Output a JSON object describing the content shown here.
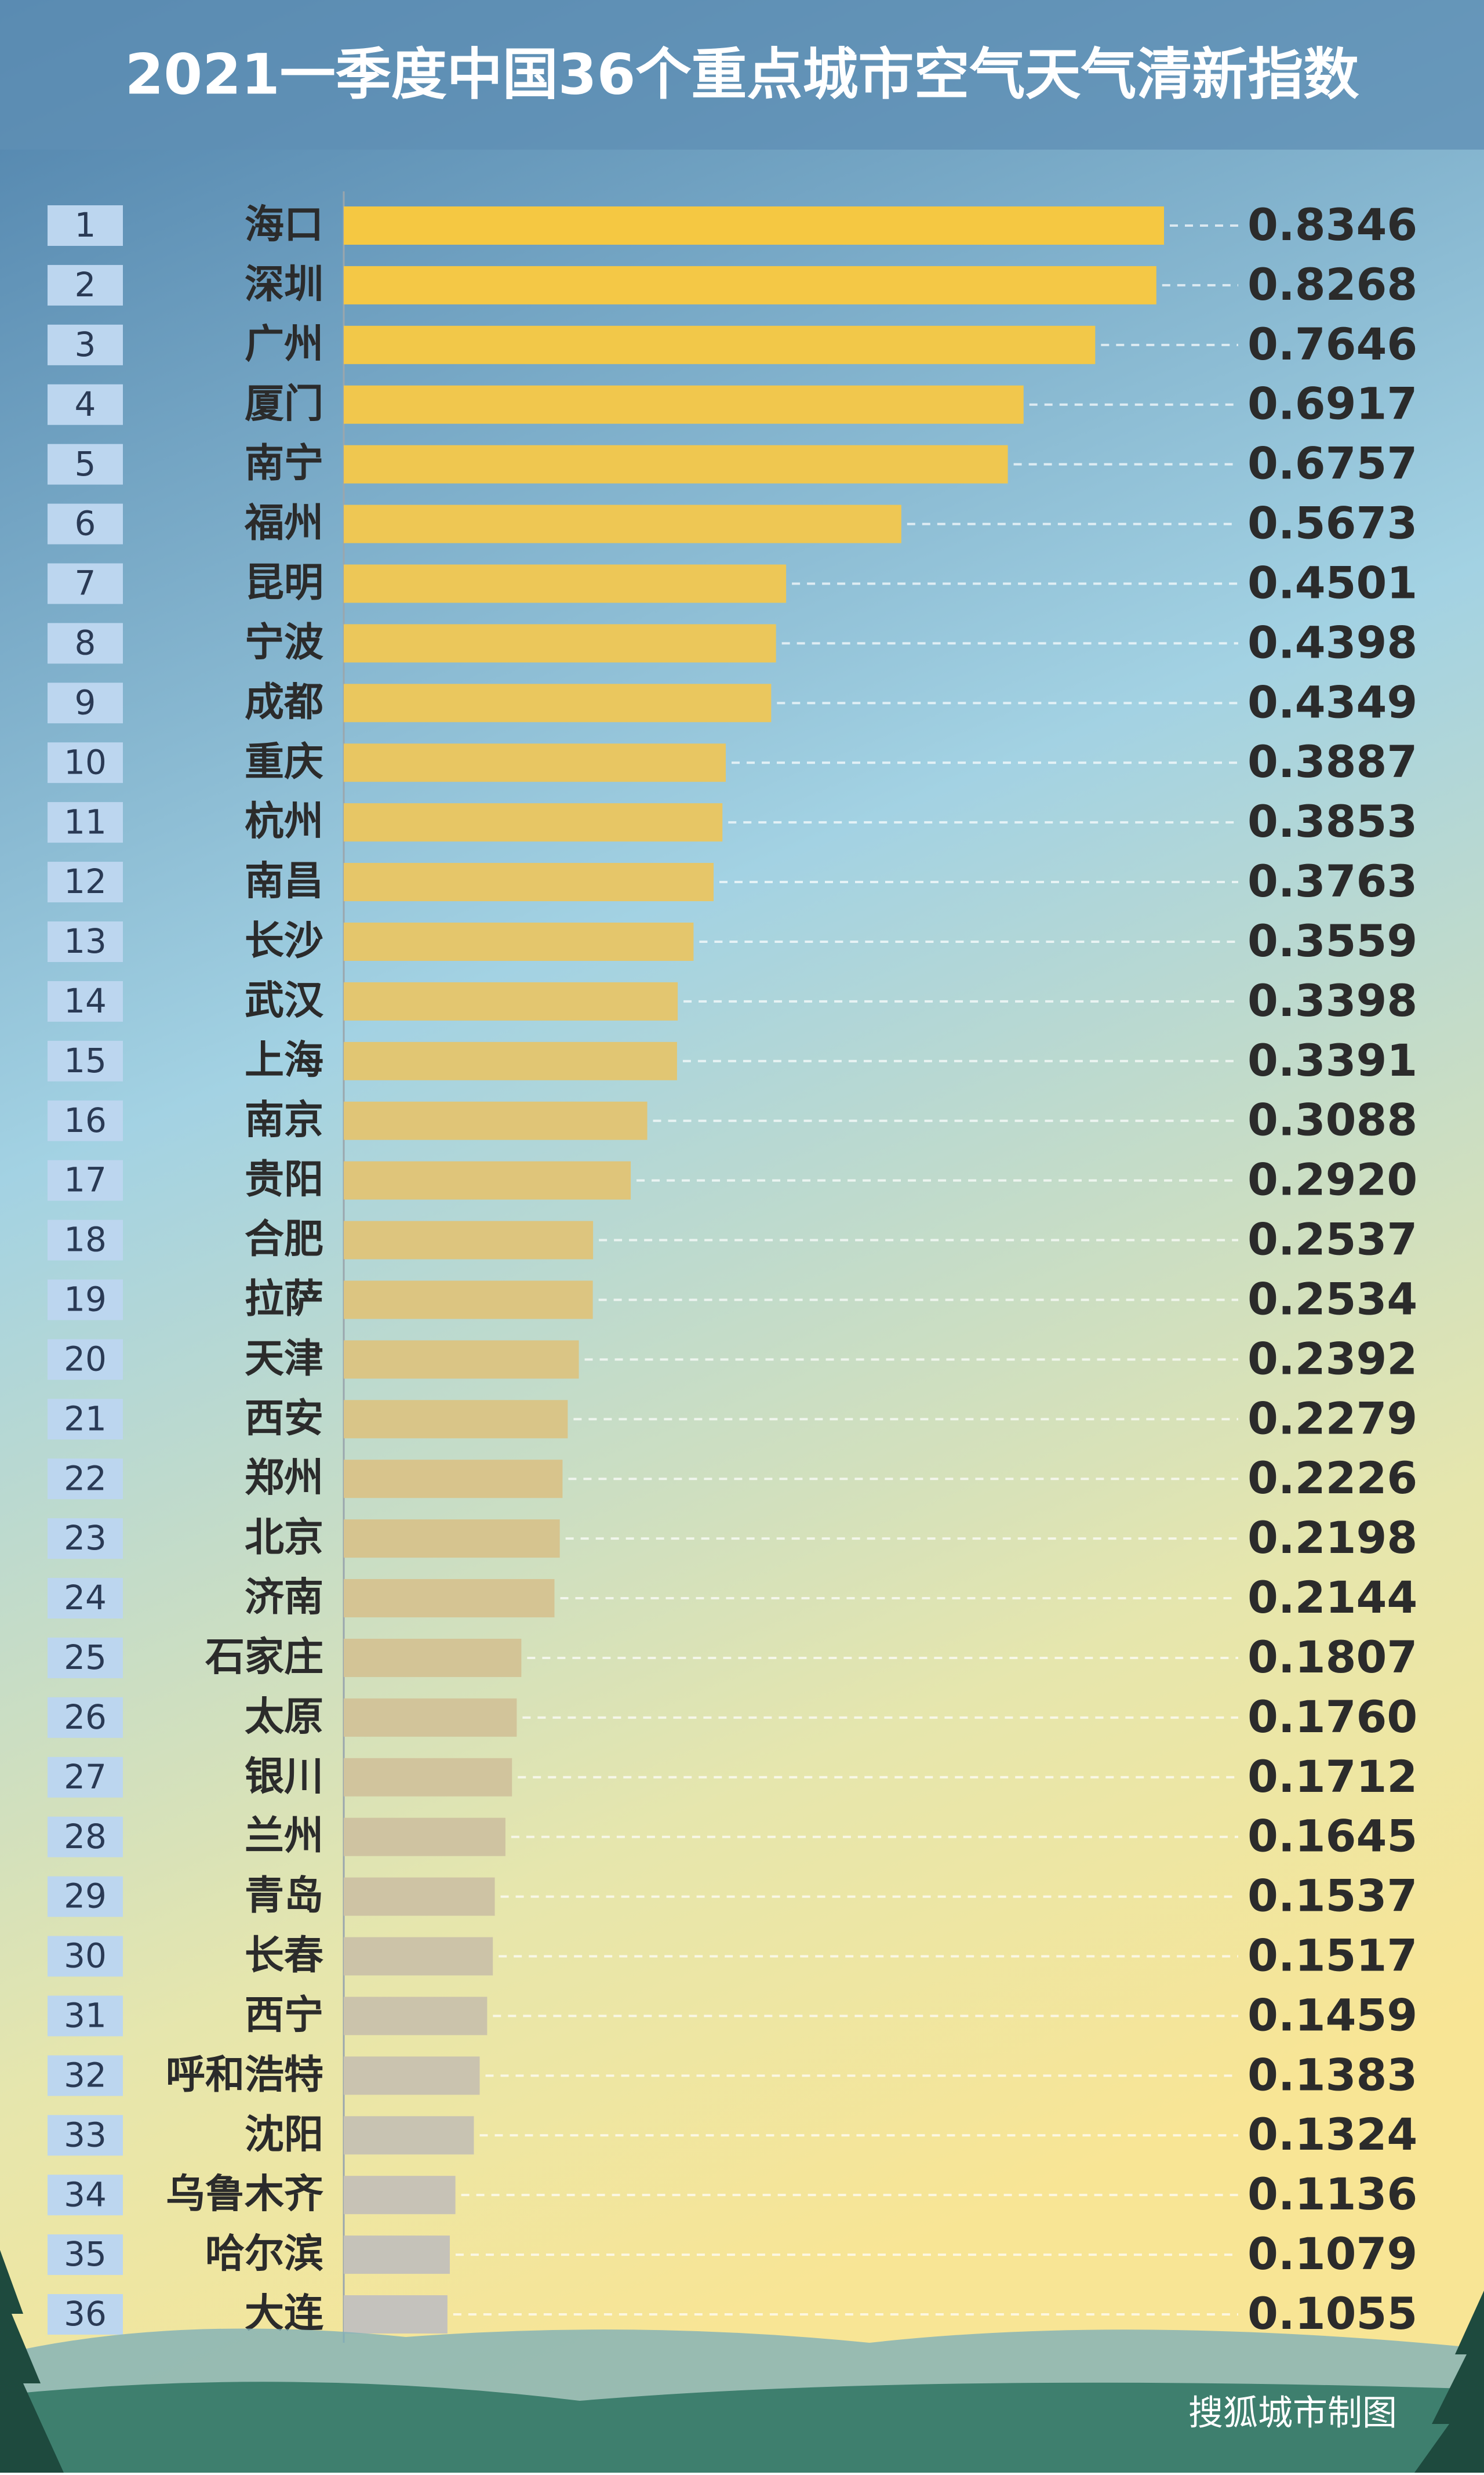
{
  "chart_data": {
    "type": "bar",
    "orientation": "horizontal",
    "title": "2021一季度中国36个重点城市空气天气清新指数",
    "ranks": [
      1,
      2,
      3,
      4,
      5,
      6,
      7,
      8,
      9,
      10,
      11,
      12,
      13,
      14,
      15,
      16,
      17,
      18,
      19,
      20,
      21,
      22,
      23,
      24,
      25,
      26,
      27,
      28,
      29,
      30,
      31,
      32,
      33,
      34,
      35,
      36
    ],
    "categories": [
      "海口",
      "深圳",
      "广州",
      "厦门",
      "南宁",
      "福州",
      "昆明",
      "宁波",
      "成都",
      "重庆",
      "杭州",
      "南昌",
      "长沙",
      "武汉",
      "上海",
      "南京",
      "贵阳",
      "合肥",
      "拉萨",
      "天津",
      "西安",
      "郑州",
      "北京",
      "济南",
      "石家庄",
      "太原",
      "银川",
      "兰州",
      "青岛",
      "长春",
      "西宁",
      "呼和浩特",
      "沈阳",
      "乌鲁木齐",
      "哈尔滨",
      "大连"
    ],
    "values": [
      0.8346,
      0.8268,
      0.7646,
      0.6917,
      0.6757,
      0.5673,
      0.4501,
      0.4398,
      0.4349,
      0.3887,
      0.3853,
      0.3763,
      0.3559,
      0.3398,
      0.3391,
      0.3088,
      0.292,
      0.2537,
      0.2534,
      0.2392,
      0.2279,
      0.2226,
      0.2198,
      0.2144,
      0.1807,
      0.176,
      0.1712,
      0.1645,
      0.1537,
      0.1517,
      0.1459,
      0.1383,
      0.1324,
      0.1136,
      0.1079,
      0.1055
    ],
    "value_labels": [
      "0.8346",
      "0.8268",
      "0.7646",
      "0.6917",
      "0.6757",
      "0.5673",
      "0.4501",
      "0.4398",
      "0.4349",
      "0.3887",
      "0.3853",
      "0.3763",
      "0.3559",
      "0.3398",
      "0.3391",
      "0.3088",
      "0.2920",
      "0.2537",
      "0.2534",
      "0.2392",
      "0.2279",
      "0.2226",
      "0.2198",
      "0.2144",
      "0.1807",
      "0.1760",
      "0.1712",
      "0.1645",
      "0.1537",
      "0.1517",
      "0.1459",
      "0.1383",
      "0.1324",
      "0.1136",
      "0.1079",
      "0.1055"
    ],
    "colors": [
      "#f5c842",
      "#c4c2bd"
    ],
    "source": "搜狐城市制图"
  }
}
